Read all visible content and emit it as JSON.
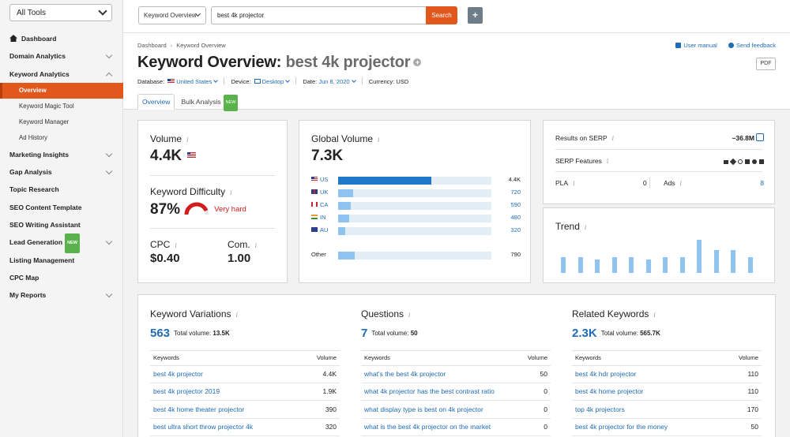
{
  "sidebar": {
    "tools_select": "All Tools",
    "items": [
      {
        "label": "Dashboard",
        "caret": "none"
      },
      {
        "label": "Domain Analytics",
        "caret": "down"
      },
      {
        "label": "Keyword Analytics",
        "caret": "up"
      },
      {
        "label": "Marketing Insights",
        "caret": "down"
      },
      {
        "label": "Gap Analysis",
        "caret": "down"
      },
      {
        "label": "Topic Research",
        "caret": "none"
      },
      {
        "label": "SEO Content Template",
        "caret": "none"
      },
      {
        "label": "SEO Writing Assistant",
        "caret": "none"
      },
      {
        "label": "Lead Generation",
        "caret": "down",
        "badge": "NEW"
      },
      {
        "label": "Listing Management",
        "caret": "none"
      },
      {
        "label": "CPC Map",
        "caret": "none"
      },
      {
        "label": "My Reports",
        "caret": "down"
      }
    ],
    "sub_items": [
      "Overview",
      "Keyword Magic Tool",
      "Keyword Manager",
      "Ad History"
    ]
  },
  "topbar": {
    "db_select": "Keyword Overview",
    "search_value": "best 4k projector",
    "search_button": "Search",
    "plus_button": "+"
  },
  "header": {
    "breadcrumb": [
      "Dashboard",
      "Keyword Overview"
    ],
    "user_manual": "User manual",
    "send_feedback": "Send feedback",
    "title_prefix": "Keyword Overview:",
    "title_keyword": "best 4k projector",
    "pdf": "PDF",
    "meta": {
      "database_label": "Database:",
      "database_value": "United States",
      "device_label": "Device:",
      "device_value": "Desktop",
      "date_label": "Date:",
      "date_value": "Jun 8, 2020",
      "currency_label": "Currency:",
      "currency_value": "USD"
    },
    "tabs": [
      {
        "label": "Overview"
      },
      {
        "label": "Bulk Analysis",
        "badge": "NEW"
      }
    ]
  },
  "volume_card": {
    "volume_title": "Volume",
    "volume_value": "4.4K",
    "kd_title": "Keyword Difficulty",
    "kd_value": "87%",
    "kd_fraction": 0.87,
    "kd_label": "Very hard",
    "cpc_title": "CPC",
    "cpc_value": "$0.40",
    "com_title": "Com.",
    "com_value": "1.00"
  },
  "global_volume": {
    "title": "Global Volume",
    "total": "7.3K",
    "rows": [
      {
        "country": "US",
        "value": "4.4K",
        "fraction": 0.61,
        "strong": true
      },
      {
        "country": "UK",
        "value": "720",
        "fraction": 0.1
      },
      {
        "country": "CA",
        "value": "590",
        "fraction": 0.08
      },
      {
        "country": "IN",
        "value": "480",
        "fraction": 0.07
      },
      {
        "country": "AU",
        "value": "320",
        "fraction": 0.045
      }
    ],
    "other": {
      "country": "Other",
      "value": "790",
      "fraction": 0.11
    }
  },
  "serp": {
    "results_label": "Results on SERP",
    "results_value": "~36.8M",
    "features_label": "SERP Features",
    "pla_label": "PLA",
    "pla_value": "0",
    "ads_label": "Ads",
    "ads_value": "8"
  },
  "trend": {
    "title": "Trend",
    "values": [
      0.48,
      0.48,
      0.4,
      0.48,
      0.48,
      0.4,
      0.48,
      0.48,
      1.0,
      0.68,
      0.68,
      0.48
    ]
  },
  "variations": {
    "title": "Keyword Variations",
    "count": "563",
    "total_label": "Total volume:",
    "total_value": "13.5K",
    "col_keywords": "Keywords",
    "col_volume": "Volume",
    "rows": [
      {
        "keyword": "best 4k projector",
        "volume": "4.4K"
      },
      {
        "keyword": "best 4k projector 2019",
        "volume": "1.9K"
      },
      {
        "keyword": "best 4k home theater projector",
        "volume": "390"
      },
      {
        "keyword": "best ultra short throw projector 4k",
        "volume": "320"
      }
    ]
  },
  "questions": {
    "title": "Questions",
    "count": "7",
    "total_label": "Total volume:",
    "total_value": "50",
    "col_keywords": "Keywords",
    "col_volume": "Volume",
    "rows": [
      {
        "keyword": "what's the best 4k projector",
        "volume": "50"
      },
      {
        "keyword": "what 4k projector has the best contrast ratio",
        "volume": "0"
      },
      {
        "keyword": "what display type is best on 4k projector",
        "volume": "0"
      },
      {
        "keyword": "what is the best 4k projector on the market",
        "volume": "0"
      }
    ]
  },
  "related": {
    "title": "Related Keywords",
    "count": "2.3K",
    "total_label": "Total volume:",
    "total_value": "565.7K",
    "col_keywords": "Keywords",
    "col_volume": "Volume",
    "rows": [
      {
        "keyword": "best 4k hdr projector",
        "volume": "110"
      },
      {
        "keyword": "best 4k home projector",
        "volume": "110"
      },
      {
        "keyword": "top 4k projectors",
        "volume": "170"
      },
      {
        "keyword": "best 4k projector for the money",
        "volume": "50"
      }
    ]
  },
  "colors": {
    "accent": "#e1571c",
    "link": "#1f6bb5",
    "bar": "#8ec4ef",
    "bar_strong": "#1f77c8",
    "danger": "#d31c1c"
  }
}
